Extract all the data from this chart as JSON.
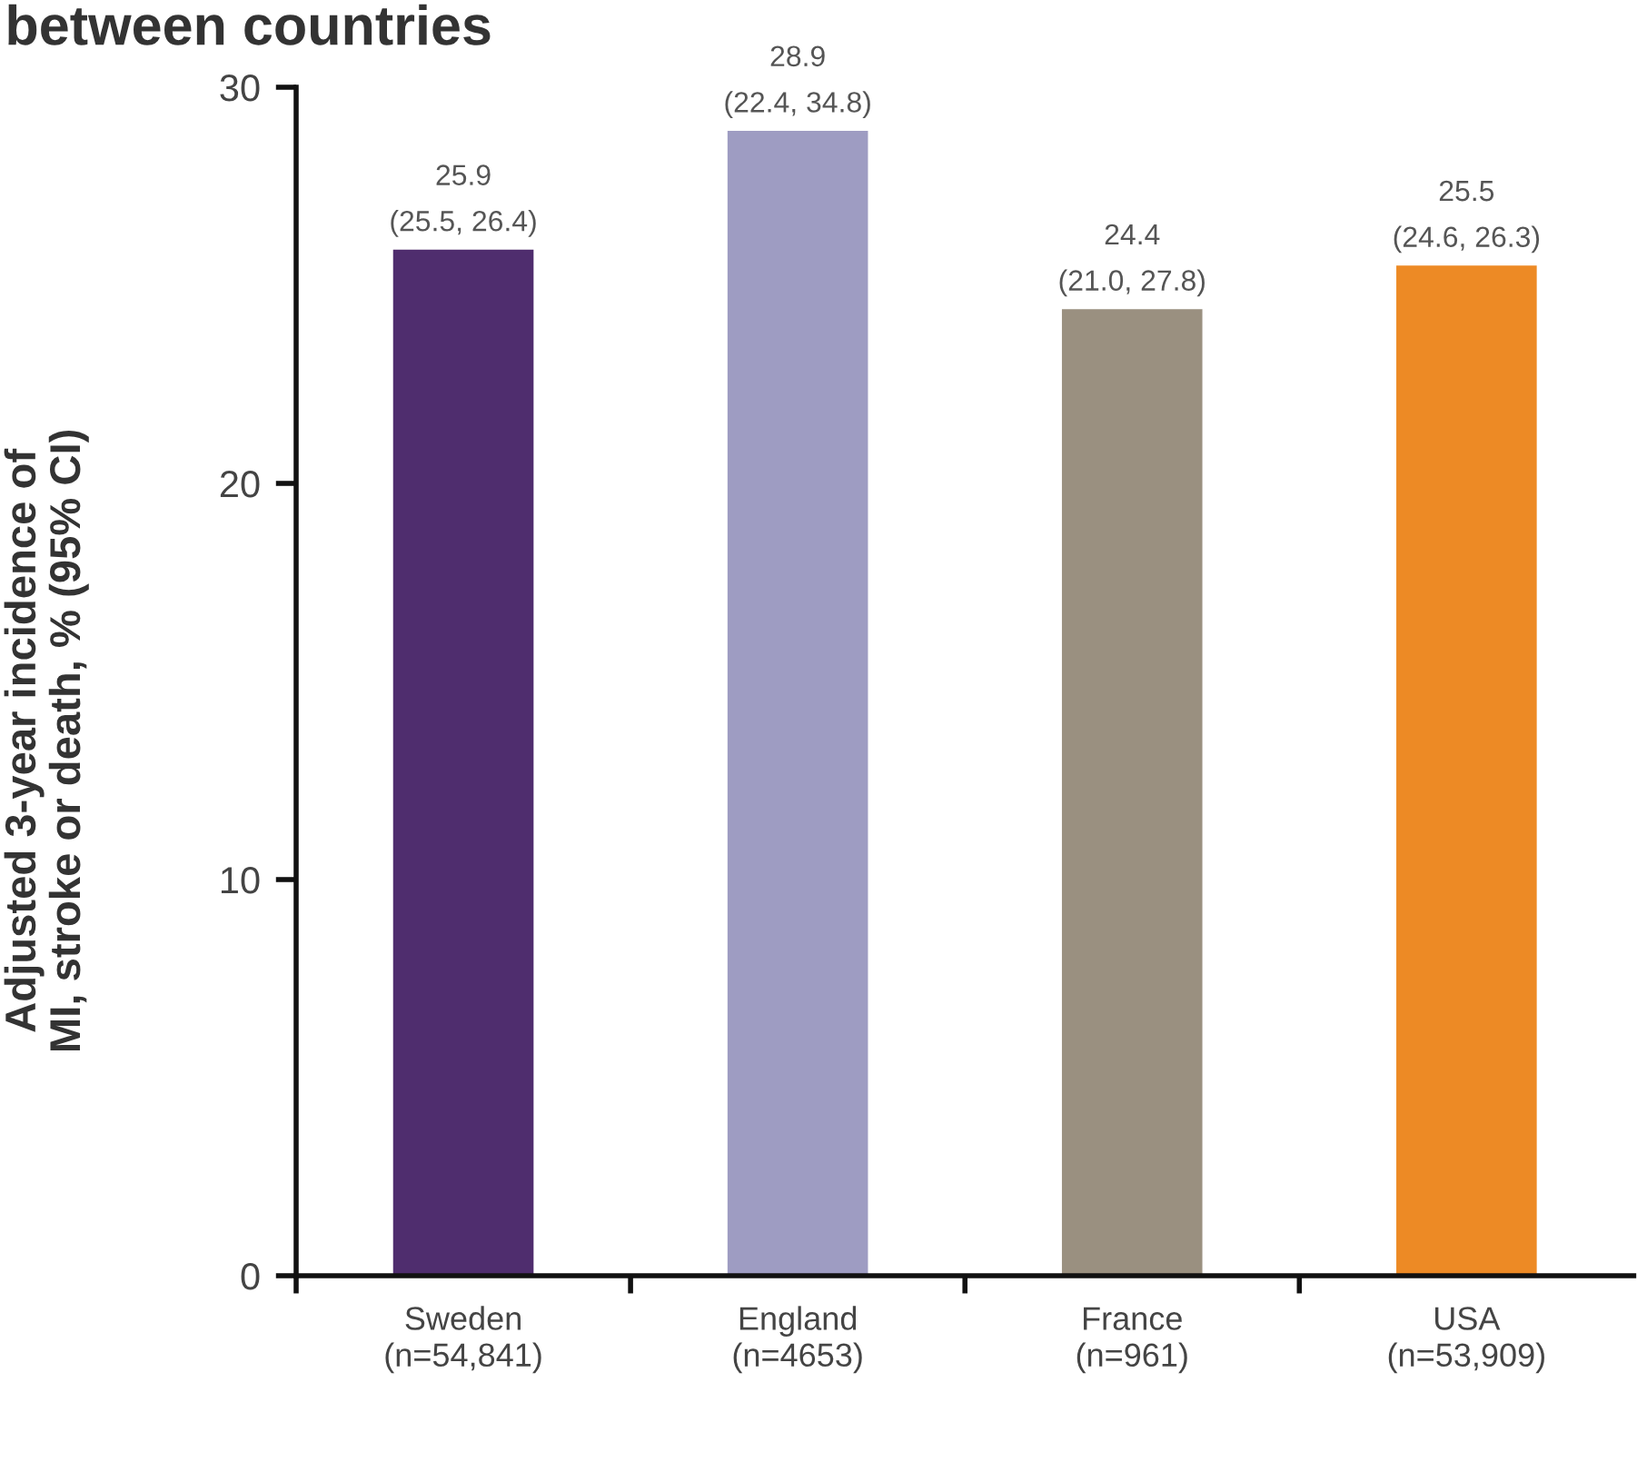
{
  "chart_data": {
    "type": "bar",
    "title": "between countries",
    "ylabel": "Adjusted 3-year incidence of\nMI, stroke or death, % (95% CI)",
    "categories": [
      "Sweden\n(n=54,841)",
      "England\n(n=4653)",
      "France\n(n=961)",
      "USA\n(n=53,909)"
    ],
    "values": [
      25.9,
      28.9,
      24.4,
      25.5
    ],
    "colors": [
      "#4f2d6e",
      "#9e9cc2",
      "#9a9080",
      "#ed8a25"
    ],
    "value_labels": [
      "25.9\n(25.5, 26.4)",
      "28.9\n(22.4, 34.8)",
      "24.4\n(21.0, 27.8)",
      "25.5\n(24.6, 26.3)"
    ],
    "ylim": [
      0,
      30
    ],
    "yticks": [
      0,
      10,
      20,
      30
    ]
  }
}
